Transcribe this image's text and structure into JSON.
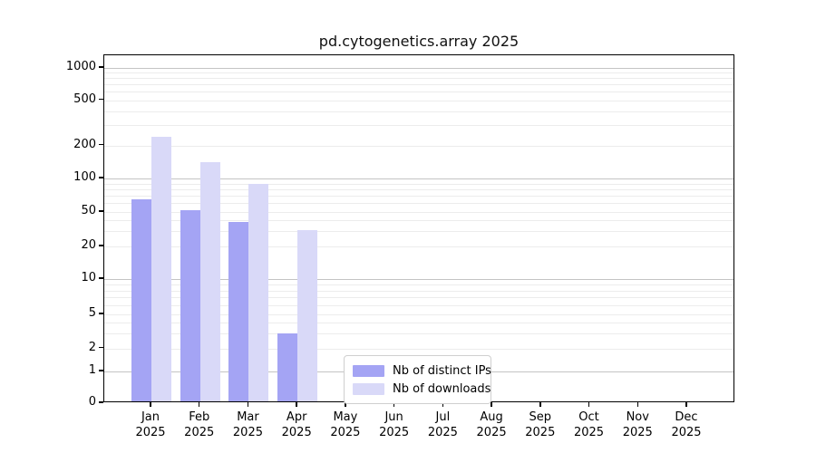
{
  "chart_data": {
    "type": "bar",
    "title": "pd.cytogenetics.array 2025",
    "year": "2025",
    "categories": [
      "Jan",
      "Feb",
      "Mar",
      "Apr",
      "May",
      "Jun",
      "Jul",
      "Aug",
      "Sep",
      "Oct",
      "Nov",
      "Dec"
    ],
    "series": [
      {
        "name": "Nb of distinct IPs",
        "color": "#a4a4f4",
        "values": [
          65,
          52,
          38,
          3,
          null,
          null,
          null,
          null,
          null,
          null,
          null,
          null
        ]
      },
      {
        "name": "Nb of downloads",
        "color": "#d9d9f8",
        "values": [
          240,
          140,
          90,
          31,
          null,
          null,
          null,
          null,
          null,
          null,
          null,
          null
        ]
      }
    ],
    "y_axis": {
      "scale": "log-like with zero baseline",
      "ticks": [
        0,
        1,
        2,
        5,
        10,
        20,
        50,
        100,
        200,
        500,
        1000
      ],
      "major_gridlines": [
        1,
        10,
        100,
        1000
      ],
      "minor_gridlines": [
        3,
        4,
        6,
        7,
        8,
        9,
        30,
        40,
        60,
        70,
        80,
        90,
        300,
        400,
        600,
        700,
        800,
        900
      ],
      "range": [
        0,
        1300
      ]
    },
    "xlabel": "",
    "ylabel": "",
    "grid": "horizontal-only",
    "legend_position": "inside-bottom-center",
    "colors": {
      "background": "#ffffff",
      "frame": "#000000",
      "text": "#000000",
      "major_grid": "#c4c4c4",
      "minor_grid": "#ececec"
    }
  }
}
